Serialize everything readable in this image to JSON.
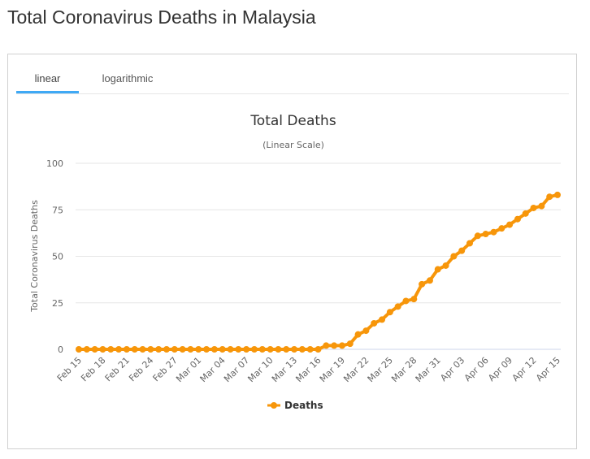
{
  "page": {
    "title": "Total Coronavirus Deaths in Malaysia"
  },
  "tabs": [
    {
      "label": "linear",
      "active": true
    },
    {
      "label": "logarithmic",
      "active": false
    }
  ],
  "colors": {
    "series": "#f7960a",
    "tab_accent": "#3fa9f5",
    "grid": "#e6e6e6"
  },
  "chart_data": {
    "type": "line",
    "title": "Total Deaths",
    "subtitle": "(Linear Scale)",
    "ylabel": "Total Coronavirus Deaths",
    "xlabel": "",
    "ylim": [
      0,
      100
    ],
    "yticks": [
      0,
      25,
      50,
      75,
      100
    ],
    "grid": true,
    "legend_position": "bottom-center",
    "x": [
      "Feb 15",
      "Feb 16",
      "Feb 17",
      "Feb 18",
      "Feb 19",
      "Feb 20",
      "Feb 21",
      "Feb 22",
      "Feb 23",
      "Feb 24",
      "Feb 25",
      "Feb 26",
      "Feb 27",
      "Feb 28",
      "Feb 29",
      "Mar 01",
      "Mar 02",
      "Mar 03",
      "Mar 04",
      "Mar 05",
      "Mar 06",
      "Mar 07",
      "Mar 08",
      "Mar 09",
      "Mar 10",
      "Mar 11",
      "Mar 12",
      "Mar 13",
      "Mar 14",
      "Mar 15",
      "Mar 16",
      "Mar 17",
      "Mar 18",
      "Mar 19",
      "Mar 20",
      "Mar 21",
      "Mar 22",
      "Mar 23",
      "Mar 24",
      "Mar 25",
      "Mar 26",
      "Mar 27",
      "Mar 28",
      "Mar 29",
      "Mar 30",
      "Mar 31",
      "Apr 01",
      "Apr 02",
      "Apr 03",
      "Apr 04",
      "Apr 05",
      "Apr 06",
      "Apr 07",
      "Apr 08",
      "Apr 09",
      "Apr 10",
      "Apr 11",
      "Apr 12",
      "Apr 13",
      "Apr 14",
      "Apr 15"
    ],
    "xtick_labels": [
      "Feb 15",
      "Feb 18",
      "Feb 21",
      "Feb 24",
      "Feb 27",
      "Mar 01",
      "Mar 04",
      "Mar 07",
      "Mar 10",
      "Mar 13",
      "Mar 16",
      "Mar 19",
      "Mar 22",
      "Mar 25",
      "Mar 28",
      "Mar 31",
      "Apr 03",
      "Apr 06",
      "Apr 09",
      "Apr 12",
      "Apr 15"
    ],
    "series": [
      {
        "name": "Deaths",
        "values": [
          0,
          0,
          0,
          0,
          0,
          0,
          0,
          0,
          0,
          0,
          0,
          0,
          0,
          0,
          0,
          0,
          0,
          0,
          0,
          0,
          0,
          0,
          0,
          0,
          0,
          0,
          0,
          0,
          0,
          0,
          0,
          2,
          2,
          2,
          3,
          8,
          10,
          14,
          16,
          20,
          23,
          26,
          27,
          35,
          37,
          43,
          45,
          50,
          53,
          57,
          61,
          62,
          63,
          65,
          67,
          70,
          73,
          76,
          77,
          82,
          83
        ]
      }
    ]
  }
}
